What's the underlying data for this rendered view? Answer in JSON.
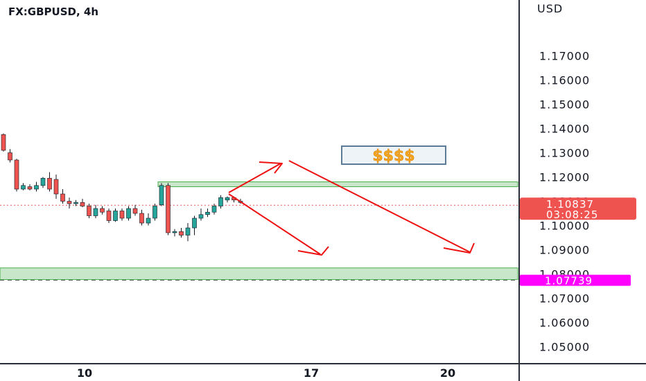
{
  "header": {
    "symbol": "FX:GBPUSD, 4h"
  },
  "chart_data": {
    "type": "candlestick",
    "title": "FX:GBPUSD, 4h",
    "currency_label": "USD",
    "ylim": [
      1.043,
      1.193
    ],
    "y_ticks": [
      "1.17000",
      "1.16000",
      "1.15000",
      "1.14000",
      "1.13000",
      "1.12000",
      "1.11000",
      "1.10000",
      "1.09000",
      "1.08000",
      "1.07000",
      "1.06000",
      "1.05000"
    ],
    "x_ticks": [
      "10",
      "17",
      "20"
    ],
    "last_price": {
      "value": 1.10837,
      "label": "1.10837",
      "countdown": "03:08:25",
      "color": "#ef5350"
    },
    "marked_price": {
      "value": 1.07739,
      "label": "1.07739",
      "color": "#ff00ff"
    },
    "candles": [
      {
        "o": 1.1375,
        "h": 1.138,
        "l": 1.1305,
        "c": 1.131
      },
      {
        "o": 1.13,
        "h": 1.1315,
        "l": 1.126,
        "c": 1.127
      },
      {
        "o": 1.127,
        "h": 1.1275,
        "l": 1.114,
        "c": 1.115
      },
      {
        "o": 1.115,
        "h": 1.1175,
        "l": 1.1145,
        "c": 1.1165
      },
      {
        "o": 1.116,
        "h": 1.117,
        "l": 1.1145,
        "c": 1.115
      },
      {
        "o": 1.115,
        "h": 1.118,
        "l": 1.114,
        "c": 1.1165
      },
      {
        "o": 1.1165,
        "h": 1.12,
        "l": 1.1155,
        "c": 1.1195
      },
      {
        "o": 1.1195,
        "h": 1.122,
        "l": 1.114,
        "c": 1.115
      },
      {
        "o": 1.119,
        "h": 1.121,
        "l": 1.111,
        "c": 1.113
      },
      {
        "o": 1.113,
        "h": 1.115,
        "l": 1.109,
        "c": 1.11
      },
      {
        "o": 1.11,
        "h": 1.1115,
        "l": 1.107,
        "c": 1.109
      },
      {
        "o": 1.109,
        "h": 1.1105,
        "l": 1.108,
        "c": 1.1095
      },
      {
        "o": 1.1095,
        "h": 1.111,
        "l": 1.1075,
        "c": 1.108
      },
      {
        "o": 1.108,
        "h": 1.109,
        "l": 1.103,
        "c": 1.104
      },
      {
        "o": 1.104,
        "h": 1.1085,
        "l": 1.103,
        "c": 1.107
      },
      {
        "o": 1.107,
        "h": 1.108,
        "l": 1.1045,
        "c": 1.1055
      },
      {
        "o": 1.106,
        "h": 1.107,
        "l": 1.101,
        "c": 1.102
      },
      {
        "o": 1.102,
        "h": 1.107,
        "l": 1.1015,
        "c": 1.106
      },
      {
        "o": 1.106,
        "h": 1.107,
        "l": 1.102,
        "c": 1.103
      },
      {
        "o": 1.103,
        "h": 1.108,
        "l": 1.102,
        "c": 1.107
      },
      {
        "o": 1.107,
        "h": 1.1085,
        "l": 1.104,
        "c": 1.105
      },
      {
        "o": 1.105,
        "h": 1.1065,
        "l": 1.1,
        "c": 1.101
      },
      {
        "o": 1.101,
        "h": 1.105,
        "l": 1.1,
        "c": 1.103
      },
      {
        "o": 1.103,
        "h": 1.109,
        "l": 1.102,
        "c": 1.108
      },
      {
        "o": 1.1085,
        "h": 1.1175,
        "l": 1.108,
        "c": 1.1165
      },
      {
        "o": 1.1165,
        "h": 1.1175,
        "l": 1.096,
        "c": 1.097
      },
      {
        "o": 1.097,
        "h": 1.0985,
        "l": 1.0955,
        "c": 1.0975
      },
      {
        "o": 1.0975,
        "h": 1.099,
        "l": 1.095,
        "c": 1.096
      },
      {
        "o": 1.096,
        "h": 1.101,
        "l": 1.0935,
        "c": 1.099
      },
      {
        "o": 1.099,
        "h": 1.104,
        "l": 1.096,
        "c": 1.103
      },
      {
        "o": 1.103,
        "h": 1.107,
        "l": 1.102,
        "c": 1.1045
      },
      {
        "o": 1.1045,
        "h": 1.107,
        "l": 1.1035,
        "c": 1.1055
      },
      {
        "o": 1.1055,
        "h": 1.109,
        "l": 1.1045,
        "c": 1.108
      },
      {
        "o": 1.108,
        "h": 1.1125,
        "l": 1.107,
        "c": 1.1115
      },
      {
        "o": 1.1105,
        "h": 1.112,
        "l": 1.1095,
        "c": 1.1115
      },
      {
        "o": 1.1115,
        "h": 1.112,
        "l": 1.1095,
        "c": 1.1105
      },
      {
        "o": 1.1095,
        "h": 1.111,
        "l": 1.109,
        "c": 1.11
      }
    ],
    "zones": [
      {
        "name": "resistance-zone",
        "y_top": 1.118,
        "y_bottom": 1.116
      },
      {
        "name": "support-zone",
        "y_top": 1.0825,
        "y_bottom": 1.0777
      }
    ],
    "annotation_text": "$$$$",
    "colors": {
      "up": "#26a69a",
      "down": "#ef5350",
      "zone_fill": "#c8e6c9",
      "zone_stroke": "#4caf50",
      "arrow": "#ee1111"
    }
  }
}
